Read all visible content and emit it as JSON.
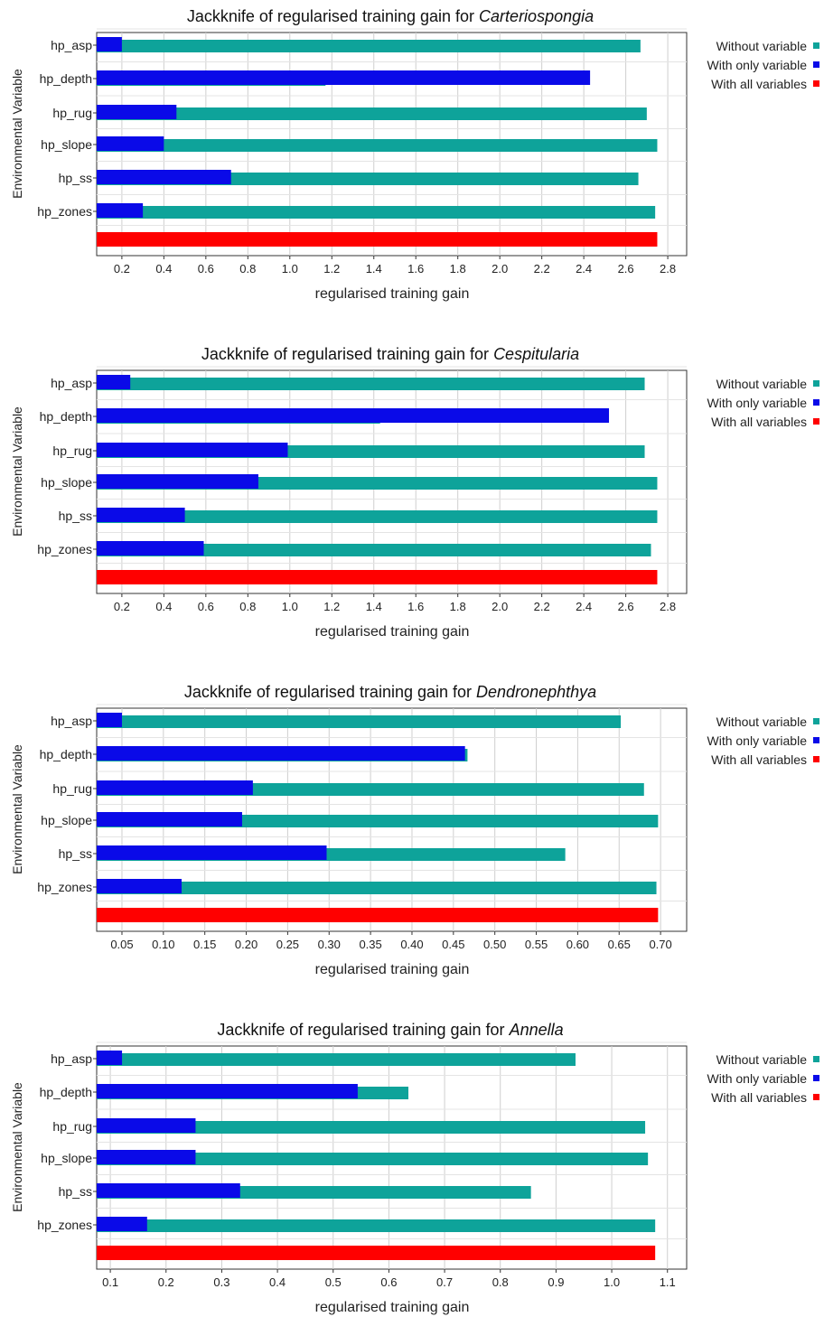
{
  "chart_data": [
    {
      "type": "bar",
      "title_prefix": "Jackknife of regularised training gain for ",
      "title_species": "Carteriospongia",
      "xlabel": "regularised training gain",
      "ylabel": "Environmental Variable",
      "xlim": [
        0.08,
        2.89
      ],
      "xticks": [
        "0.2",
        "0.4",
        "0.6",
        "0.8",
        "1.0",
        "1.2",
        "1.4",
        "1.6",
        "1.8",
        "2.0",
        "2.2",
        "2.4",
        "2.6",
        "2.8"
      ],
      "categories": [
        "hp_asp",
        "hp_depth",
        "hp_rug",
        "hp_slope",
        "hp_ss",
        "hp_zones"
      ],
      "series": [
        {
          "name": "Without variable",
          "values": [
            2.67,
            1.17,
            2.7,
            2.75,
            2.66,
            2.74
          ]
        },
        {
          "name": "With only variable",
          "values": [
            0.2,
            2.43,
            0.46,
            0.4,
            0.72,
            0.3
          ]
        }
      ],
      "all_variables": 2.75,
      "legend": [
        "Without variable",
        "With only variable",
        "With all variables"
      ],
      "colors": {
        "without": "#0ea39a",
        "only": "#0a0ae8",
        "all": "#ff0000"
      },
      "grid": true,
      "legend_position": "right"
    },
    {
      "type": "bar",
      "title_prefix": "Jackknife of regularised training gain for ",
      "title_species": "Cespitularia",
      "xlabel": "regularised training gain",
      "ylabel": "Environmental Variable",
      "xlim": [
        0.08,
        2.89
      ],
      "xticks": [
        "0.2",
        "0.4",
        "0.6",
        "0.8",
        "1.0",
        "1.2",
        "1.4",
        "1.6",
        "1.8",
        "2.0",
        "2.2",
        "2.4",
        "2.6",
        "2.8"
      ],
      "categories": [
        "hp_asp",
        "hp_depth",
        "hp_rug",
        "hp_slope",
        "hp_ss",
        "hp_zones"
      ],
      "series": [
        {
          "name": "Without variable",
          "values": [
            2.69,
            1.43,
            2.69,
            2.75,
            2.75,
            2.72
          ]
        },
        {
          "name": "With only variable",
          "values": [
            0.24,
            2.52,
            0.99,
            0.85,
            0.5,
            0.59
          ]
        }
      ],
      "all_variables": 2.75,
      "legend": [
        "Without variable",
        "With only variable",
        "With all variables"
      ],
      "colors": {
        "without": "#0ea39a",
        "only": "#0a0ae8",
        "all": "#ff0000"
      },
      "grid": true,
      "legend_position": "right"
    },
    {
      "type": "bar",
      "title_prefix": "Jackknife of regularised training gain for ",
      "title_species": "Dendronephthya",
      "xlabel": "regularised training gain",
      "ylabel": "Environmental Variable",
      "xlim": [
        0.0195,
        0.7315
      ],
      "xticks": [
        "0.05",
        "0.10",
        "0.15",
        "0.20",
        "0.25",
        "0.30",
        "0.35",
        "0.40",
        "0.45",
        "0.50",
        "0.55",
        "0.60",
        "0.65",
        "0.70"
      ],
      "categories": [
        "hp_asp",
        "hp_depth",
        "hp_rug",
        "hp_slope",
        "hp_ss",
        "hp_zones"
      ],
      "series": [
        {
          "name": "Without variable",
          "values": [
            0.652,
            0.467,
            0.68,
            0.697,
            0.585,
            0.695
          ]
        },
        {
          "name": "With only variable",
          "values": [
            0.05,
            0.464,
            0.208,
            0.195,
            0.297,
            0.122
          ]
        }
      ],
      "all_variables": 0.697,
      "legend": [
        "Without variable",
        "With only variable",
        "With all variables"
      ],
      "colors": {
        "without": "#0ea39a",
        "only": "#0a0ae8",
        "all": "#ff0000"
      },
      "grid": true,
      "legend_position": "right"
    },
    {
      "type": "bar",
      "title_prefix": "Jackknife of regularised training gain for ",
      "title_species": "Annella",
      "xlabel": "regularised training gain",
      "ylabel": "Environmental Variable",
      "xlim": [
        0.0755,
        1.1345
      ],
      "xticks": [
        "0.1",
        "0.2",
        "0.3",
        "0.4",
        "0.5",
        "0.6",
        "0.7",
        "0.8",
        "0.9",
        "1.0",
        "1.1"
      ],
      "categories": [
        "hp_asp",
        "hp_depth",
        "hp_rug",
        "hp_slope",
        "hp_ss",
        "hp_zones"
      ],
      "series": [
        {
          "name": "Without variable",
          "values": [
            0.935,
            0.635,
            1.06,
            1.065,
            0.855,
            1.078
          ]
        },
        {
          "name": "With only variable",
          "values": [
            0.121,
            0.544,
            0.253,
            0.253,
            0.333,
            0.166
          ]
        }
      ],
      "all_variables": 1.078,
      "legend": [
        "Without variable",
        "With only variable",
        "With all variables"
      ],
      "colors": {
        "without": "#0ea39a",
        "only": "#0a0ae8",
        "all": "#ff0000"
      },
      "grid": true,
      "legend_position": "right"
    }
  ]
}
